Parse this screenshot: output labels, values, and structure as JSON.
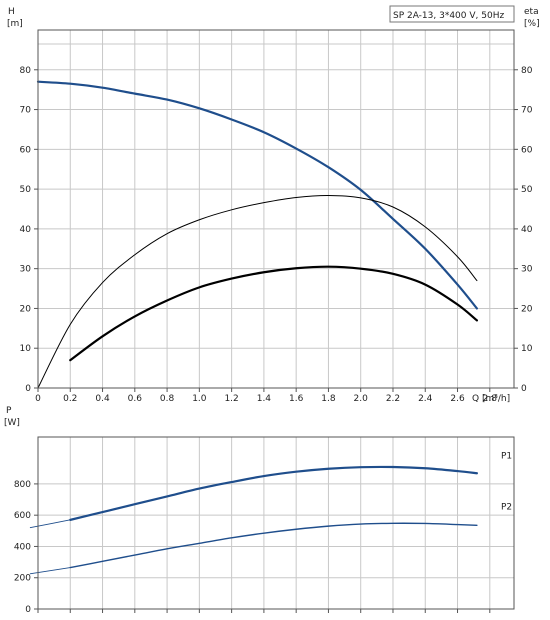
{
  "chart_data": [
    {
      "type": "line",
      "title": "SP 2A-13, 3*400 V, 50Hz",
      "ylabel": "H",
      "yunit": "[m]",
      "y2label": "eta",
      "y2unit": "[%]",
      "xlabel": "Q [m³/h]",
      "xlim": [
        0,
        2.95
      ],
      "ylim": [
        0,
        90
      ],
      "y2lim": [
        0,
        90
      ],
      "x_ticks": [
        "0",
        "0.2",
        "0.4",
        "0.6",
        "0.8",
        "1.0",
        "1.2",
        "1.4",
        "1.6",
        "1.8",
        "2.0",
        "2.2",
        "2.4",
        "2.6",
        "2.8"
      ],
      "y_ticks": [
        "0",
        "10",
        "20",
        "30",
        "40",
        "50",
        "60",
        "70",
        "80"
      ],
      "y2_ticks": [
        "0",
        "10",
        "20",
        "30",
        "40",
        "50",
        "60",
        "70",
        "80"
      ],
      "grid": true,
      "series": [
        {
          "color": "#1f4e8c",
          "axis": "left",
          "width": 2.2,
          "x": [
            0.0,
            0.2,
            0.4,
            0.6,
            0.8,
            1.0,
            1.2,
            1.4,
            1.6,
            1.8,
            2.0,
            2.2,
            2.4,
            2.6,
            2.72
          ],
          "y": [
            77,
            76.5,
            75.5,
            74,
            72.5,
            70.3,
            67.5,
            64.3,
            60.2,
            55.5,
            49.8,
            42.5,
            35,
            26,
            20
          ]
        },
        {
          "color": "#000000",
          "axis": "right",
          "width": 1.0,
          "x": [
            0.0,
            0.2,
            0.4,
            0.6,
            0.8,
            1.0,
            1.2,
            1.4,
            1.6,
            1.8,
            2.0,
            2.2,
            2.4,
            2.6,
            2.72
          ],
          "y": [
            0,
            16,
            26.5,
            33.5,
            38.8,
            42.3,
            44.8,
            46.6,
            47.9,
            48.4,
            47.8,
            45.5,
            40.5,
            33,
            27
          ]
        },
        {
          "color": "#000000",
          "axis": "right",
          "width": 2.2,
          "x": [
            0.2,
            0.4,
            0.6,
            0.8,
            1.0,
            1.2,
            1.4,
            1.6,
            1.8,
            2.0,
            2.2,
            2.4,
            2.6,
            2.72
          ],
          "y": [
            7,
            13,
            18,
            22,
            25.3,
            27.5,
            29.1,
            30.1,
            30.5,
            30,
            28.7,
            26,
            21,
            17
          ]
        }
      ]
    },
    {
      "type": "line",
      "ylabel": "P",
      "yunit": "[W]",
      "xlim": [
        0,
        2.95
      ],
      "ylim": [
        0,
        1100
      ],
      "y_ticks": [
        "0",
        "200",
        "400",
        "600",
        "800"
      ],
      "grid": true,
      "series": [
        {
          "name": "P1",
          "color": "#1f4e8c",
          "x": [
            -0.05,
            0.2,
            0.4,
            0.6,
            0.8,
            1.0,
            1.2,
            1.4,
            1.6,
            1.8,
            2.0,
            2.2,
            2.4,
            2.6,
            2.72
          ],
          "y": [
            520,
            570,
            620,
            670,
            720,
            770,
            812,
            850,
            878,
            897,
            907,
            908,
            900,
            882,
            868
          ],
          "thick_from": 0.2
        },
        {
          "name": "P2",
          "color": "#1f4e8c",
          "x": [
            -0.05,
            0.2,
            0.4,
            0.6,
            0.8,
            1.0,
            1.2,
            1.4,
            1.6,
            1.8,
            2.0,
            2.2,
            2.4,
            2.6,
            2.72
          ],
          "y": [
            225,
            265,
            305,
            345,
            385,
            420,
            455,
            485,
            510,
            530,
            543,
            548,
            547,
            540,
            535
          ],
          "thick_from": 0.2
        }
      ]
    }
  ]
}
